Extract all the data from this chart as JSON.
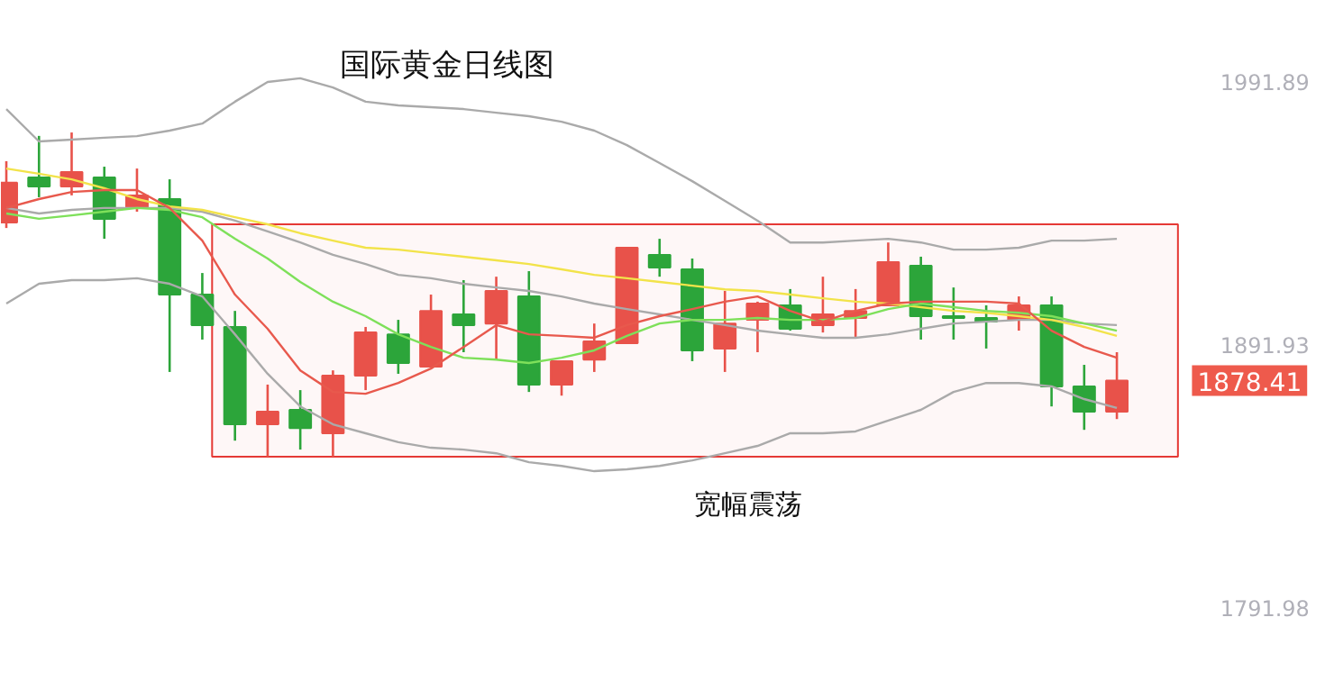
{
  "chart_data": {
    "type": "candlestick",
    "title": "国际黄金日线图",
    "categories": [
      null,
      null,
      null,
      null,
      null,
      null,
      null,
      null,
      null,
      null,
      null,
      null,
      null,
      null,
      null,
      null,
      null,
      null,
      null,
      null,
      null,
      null,
      null,
      null,
      null,
      null,
      null,
      null,
      null,
      null,
      null,
      null,
      null,
      null,
      null
    ],
    "ohlc": [
      [
        1938.5,
        1961.8,
        1936.4,
        1953.6
      ],
      [
        1955.6,
        1971.4,
        1948.1,
        1952.2
      ],
      [
        1952.2,
        1972.7,
        1948.8,
        1957.7
      ],
      [
        1955.6,
        1959.7,
        1932.3,
        1939.9
      ],
      [
        1944.0,
        1959.0,
        1942.6,
        1948.8
      ],
      [
        1947.4,
        1954.9,
        1881.7,
        1911.1
      ],
      [
        1911.1,
        1919.3,
        1894.0,
        1899.5
      ],
      [
        1898.8,
        1904.9,
        1855.6,
        1861.8
      ],
      [
        1861.8,
        1876.9,
        1849.5,
        1866.6
      ],
      [
        1867.3,
        1874.8,
        1852.2,
        1860.4
      ],
      [
        1858.4,
        1882.3,
        1849.5,
        1880.3
      ],
      [
        1880.3,
        1898.8,
        1874.8,
        1896.7
      ],
      [
        1896.0,
        1901.5,
        1881.0,
        1885.1
      ],
      [
        1883.7,
        1911.1,
        1883.7,
        1904.9
      ],
      [
        1903.6,
        1916.6,
        1889.2,
        1899.5
      ],
      [
        1900.1,
        1917.9,
        1886.4,
        1912.5
      ],
      [
        1910.4,
        1920.0,
        1874.1,
        1876.9
      ],
      [
        1876.9,
        1885.8,
        1872.7,
        1885.8
      ],
      [
        1886.4,
        1900.1,
        1881.7,
        1893.3
      ],
      [
        1892.6,
        1928.9,
        1892.6,
        1928.9
      ],
      [
        1926.2,
        1932.3,
        1917.9,
        1921.4
      ],
      [
        1920.7,
        1924.8,
        1885.8,
        1889.9
      ],
      [
        1890.6,
        1912.5,
        1881.7,
        1900.1
      ],
      [
        1901.5,
        1908.4,
        1889.2,
        1907.7
      ],
      [
        1907.0,
        1913.2,
        1897.4,
        1898.1
      ],
      [
        1899.5,
        1917.9,
        1896.7,
        1903.6
      ],
      [
        1902.2,
        1913.2,
        1894.7,
        1904.9
      ],
      [
        1907.0,
        1930.9,
        1907.0,
        1923.4
      ],
      [
        1922.1,
        1925.5,
        1894.0,
        1902.9
      ],
      [
        1902.9,
        1913.8,
        1894.0,
        1902.2
      ],
      [
        1902.2,
        1907.0,
        1890.6,
        1900.8
      ],
      [
        1901.5,
        1910.4,
        1897.4,
        1907.0
      ],
      [
        1907.0,
        1910.4,
        1868.6,
        1876.2
      ],
      [
        1876.2,
        1884.4,
        1859.7,
        1866.6
      ],
      [
        1866.6,
        1889.2,
        1863.8,
        1878.41
      ]
    ],
    "colors": [
      "#e8524a",
      "#2ca53a",
      "#e8524a",
      "#2ca53a",
      "#e8524a",
      "#2ca53a",
      "#2ca53a",
      "#2ca53a",
      "#e8524a",
      "#2ca53a",
      "#e8524a",
      "#e8524a",
      "#2ca53a",
      "#e8524a",
      "#2ca53a",
      "#e8524a",
      "#2ca53a",
      "#e8524a",
      "#e8524a",
      "#e8524a",
      "#2ca53a",
      "#2ca53a",
      "#e8524a",
      "#e8524a",
      "#2ca53a",
      "#e8524a",
      "#e8524a",
      "#e8524a",
      "#2ca53a",
      "#2ca53a",
      "#2ca53a",
      "#e8524a",
      "#2ca53a",
      "#2ca53a",
      "#e8524a"
    ],
    "series": [
      {
        "type": "line",
        "color": "#aaaaaa",
        "values": [
          1981.6,
          1969.3,
          1970.0,
          1970.7,
          1971.3,
          1973.4,
          1976.1,
          1984.4,
          1991.9,
          1993.3,
          1989.8,
          1984.4,
          1983.0,
          1982.3,
          1981.6,
          1980.2,
          1978.9,
          1976.8,
          1973.4,
          1967.9,
          1961.1,
          1954.2,
          1946.7,
          1939.2,
          1930.9,
          1930.9,
          1931.6,
          1932.3,
          1930.9,
          1928.2,
          1928.2,
          1928.9,
          1931.6,
          1931.6,
          1932.3
        ]
      },
      {
        "type": "line",
        "color": "#aaaaaa",
        "values": [
          1944.0,
          1941.9,
          1943.3,
          1944.0,
          1944.0,
          1944.0,
          1942.6,
          1939.2,
          1935.1,
          1930.9,
          1926.2,
          1922.7,
          1918.6,
          1917.3,
          1915.2,
          1913.8,
          1912.5,
          1910.4,
          1907.7,
          1905.6,
          1903.6,
          1901.5,
          1899.5,
          1897.4,
          1896.0,
          1894.7,
          1894.7,
          1896.0,
          1898.1,
          1900.1,
          1900.8,
          1901.5,
          1901.5,
          1900.1,
          1899.5
        ]
      },
      {
        "type": "line",
        "color": "#aaaaaa",
        "values": [
          1907.7,
          1915.2,
          1916.6,
          1916.6,
          1917.3,
          1915.2,
          1910.4,
          1896.0,
          1881.0,
          1868.6,
          1861.8,
          1858.4,
          1855.0,
          1852.9,
          1852.2,
          1850.8,
          1847.4,
          1846.0,
          1844.0,
          1844.7,
          1846.0,
          1848.1,
          1850.8,
          1853.6,
          1858.4,
          1858.4,
          1859.1,
          1863.2,
          1867.3,
          1874.1,
          1877.5,
          1877.5,
          1876.2,
          1871.4,
          1868.0
        ]
      },
      {
        "type": "line",
        "color": "#f2e34a",
        "values": [
          1959.0,
          1957.0,
          1954.9,
          1951.5,
          1947.4,
          1944.6,
          1943.3,
          1940.5,
          1937.8,
          1934.4,
          1931.6,
          1928.9,
          1928.2,
          1926.8,
          1925.5,
          1924.1,
          1922.7,
          1920.7,
          1918.6,
          1917.3,
          1915.9,
          1914.5,
          1913.1,
          1912.5,
          1911.1,
          1909.7,
          1908.4,
          1907.7,
          1906.3,
          1904.9,
          1904.2,
          1902.9,
          1901.5,
          1898.8,
          1895.4
        ]
      },
      {
        "type": "line",
        "color": "#7ee05a",
        "values": [
          1941.9,
          1939.9,
          1941.2,
          1942.6,
          1944.0,
          1943.3,
          1940.5,
          1932.3,
          1924.8,
          1915.9,
          1908.4,
          1902.9,
          1896.0,
          1891.2,
          1887.1,
          1886.4,
          1885.1,
          1887.1,
          1889.9,
          1895.4,
          1900.1,
          1901.5,
          1901.5,
          1902.2,
          1901.5,
          1901.5,
          1902.2,
          1905.6,
          1907.7,
          1906.3,
          1904.9,
          1904.2,
          1902.9,
          1900.1,
          1897.4
        ]
      },
      {
        "type": "line",
        "color": "#e8594d",
        "values": [
          1944.0,
          1947.4,
          1950.1,
          1950.8,
          1950.8,
          1944.0,
          1931.6,
          1911.1,
          1898.1,
          1882.3,
          1874.1,
          1873.4,
          1877.5,
          1883.0,
          1891.2,
          1899.5,
          1896.0,
          1895.4,
          1894.7,
          1899.5,
          1902.9,
          1905.6,
          1908.4,
          1910.4,
          1904.9,
          1900.8,
          1904.9,
          1907.7,
          1908.4,
          1908.4,
          1908.4,
          1907.7,
          1897.4,
          1891.2,
          1887.1
        ]
      }
    ],
    "ylim": [
      1760.5,
      2022.7
    ],
    "yticks": [
      1791.98,
      1891.93,
      1991.89
    ],
    "tick_labels": "y",
    "annotations": [
      "1878.41"
    ],
    "bands": [
      {
        "axis": "y",
        "from": 1849.5,
        "to": 1937.8,
        "label": "宽幅震荡",
        "color": "#e53935"
      }
    ]
  }
}
